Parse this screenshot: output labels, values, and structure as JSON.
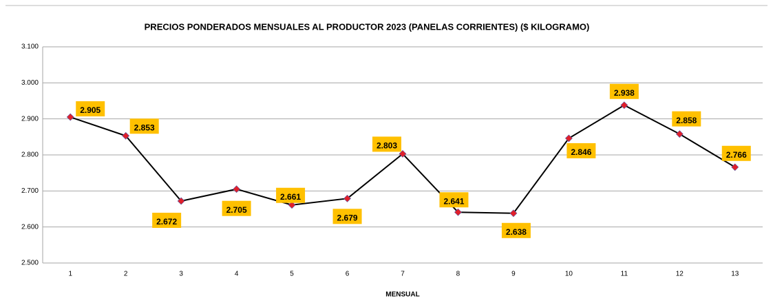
{
  "chart_data": {
    "type": "line",
    "title": "PRECIOS  PONDERADOS MENSUALES AL PRODUCTOR 2023 (PANELAS CORRIENTES) ($ KILOGRAMO)",
    "x_label": "MENSUAL",
    "categories": [
      "1",
      "2",
      "3",
      "4",
      "5",
      "6",
      "7",
      "8",
      "9",
      "10",
      "11",
      "12",
      "13"
    ],
    "values": [
      2905,
      2853,
      2672,
      2705,
      2661,
      2679,
      2803,
      2641,
      2638,
      2846,
      2938,
      2858,
      2766
    ],
    "value_labels": [
      "2.905",
      "2.853",
      "2.672",
      "2.705",
      "2.661",
      "2.679",
      "2.803",
      "2.641",
      "2.638",
      "2.846",
      "2.938",
      "2.858",
      "2.766"
    ],
    "color": "#000000",
    "marker_color": "#e0202a",
    "label_box_color": "#ffc000",
    "ylim": [
      2500,
      3100
    ],
    "yticks": [
      {
        "value": 2500,
        "label": "2.500"
      },
      {
        "value": 2600,
        "label": "2.600"
      },
      {
        "value": 2700,
        "label": "2.700"
      },
      {
        "value": 2800,
        "label": "2.800"
      },
      {
        "value": 2900,
        "label": "2.900"
      },
      {
        "value": 3000,
        "label": "3.000"
      },
      {
        "value": 3100,
        "label": "3.100"
      }
    ],
    "grid": true
  }
}
